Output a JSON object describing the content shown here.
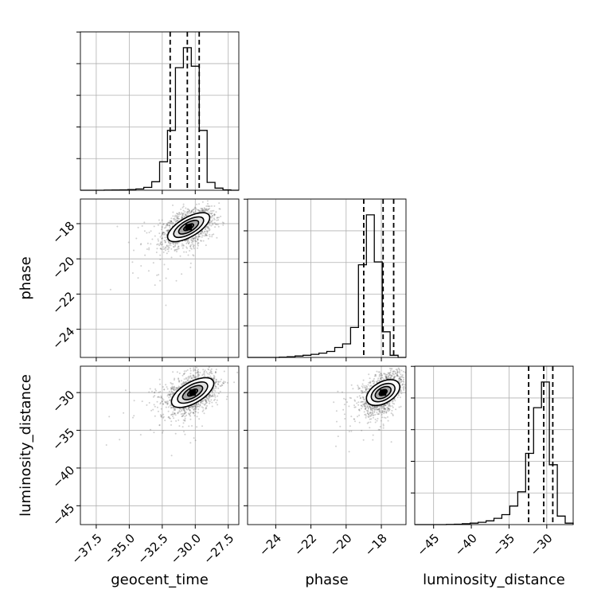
{
  "chart_data": {
    "type": "corner",
    "title": "",
    "parameters": [
      "geocent_time",
      "phase",
      "luminosity_distance"
    ],
    "axes": {
      "geocent_time": {
        "range": [
          -38.7,
          -26.7
        ],
        "ticks": [
          -37.5,
          -35.0,
          -32.5,
          -30.0,
          -27.5
        ],
        "tick_labels": [
          "−37.5",
          "−35.0",
          "−32.5",
          "−30.0",
          "−27.5"
        ]
      },
      "phase": {
        "range": [
          -25.6,
          -16.6
        ],
        "ticks": [
          -24,
          -22,
          -20,
          -18
        ],
        "tick_labels": [
          "−24",
          "−22",
          "−20",
          "−18"
        ]
      },
      "luminosity_distance": {
        "range": [
          -47.5,
          -26.5
        ],
        "ticks": [
          -45,
          -40,
          -35,
          -30
        ],
        "tick_labels": [
          "−45",
          "−40",
          "−35",
          "−30"
        ]
      }
    },
    "grid": true,
    "quantile_lines": "dashed",
    "histograms": {
      "geocent_time": {
        "bin_edges": [
          -38.7,
          -38.1,
          -37.5,
          -36.9,
          -36.3,
          -35.7,
          -35.1,
          -34.5,
          -33.9,
          -33.3,
          -32.7,
          -32.1,
          -31.5,
          -30.9,
          -30.3,
          -29.7,
          -29.1,
          -28.5,
          -27.9,
          -27.3,
          -26.7
        ],
        "counts": [
          0,
          0,
          0,
          1,
          2,
          3,
          5,
          9,
          20,
          60,
          200,
          420,
          860,
          1000,
          870,
          420,
          55,
          15,
          3,
          0
        ],
        "quantiles": [
          -31.9,
          -30.6,
          -29.7
        ]
      },
      "phase": {
        "bin_edges": [
          -25.6,
          -25.15,
          -24.7,
          -24.25,
          -23.8,
          -23.35,
          -22.9,
          -22.45,
          -22.0,
          -21.55,
          -21.1,
          -20.65,
          -20.2,
          -19.75,
          -19.3,
          -18.85,
          -18.4,
          -17.95,
          -17.5,
          -17.05,
          -16.6
        ],
        "counts": [
          0,
          0,
          0,
          0,
          2,
          5,
          10,
          15,
          22,
          30,
          42,
          70,
          95,
          210,
          650,
          1000,
          670,
          180,
          15,
          0
        ],
        "quantiles": [
          -19.0,
          -17.9,
          -17.3
        ]
      },
      "luminosity_distance": {
        "bin_edges": [
          -47.5,
          -46.45,
          -45.4,
          -44.35,
          -43.3,
          -42.25,
          -41.2,
          -40.15,
          -39.1,
          -38.05,
          -37.0,
          -35.95,
          -34.9,
          -33.85,
          -32.8,
          -31.75,
          -30.7,
          -29.65,
          -28.6,
          -27.55,
          -26.5
        ],
        "counts": [
          0,
          0,
          0,
          0,
          1,
          3,
          6,
          10,
          16,
          26,
          44,
          70,
          130,
          230,
          500,
          820,
          1000,
          420,
          60,
          10
        ],
        "quantiles": [
          -32.4,
          -30.4,
          -29.2
        ]
      }
    },
    "contours_2d": {
      "phase_vs_geocent_time": {
        "x": "geocent_time",
        "y": "phase",
        "peak": [
          -30.5,
          -18.2
        ]
      },
      "luminosity_distance_vs_geocent_time": {
        "x": "geocent_time",
        "y": "luminosity_distance",
        "peak": [
          -30.2,
          -30.0
        ]
      },
      "luminosity_distance_vs_phase": {
        "x": "phase",
        "y": "luminosity_distance",
        "peak": [
          -17.9,
          -30.0
        ]
      }
    }
  }
}
